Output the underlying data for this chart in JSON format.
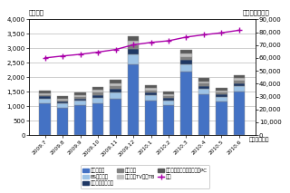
{
  "categories": [
    "2009.7",
    "2009.8",
    "2009.9",
    "2009.10",
    "2009.11",
    "2009.12",
    "2010.1",
    "2010.2",
    "2010.3",
    "2010.4",
    "2010.5",
    "2010.6"
  ],
  "chijoTV": [
    1100,
    950,
    1050,
    1100,
    1250,
    2450,
    1200,
    1050,
    2200,
    1400,
    1150,
    1500
  ],
  "BSrecorder": [
    160,
    140,
    150,
    200,
    220,
    330,
    170,
    150,
    250,
    190,
    165,
    190
  ],
  "digitalRecorder": [
    75,
    65,
    70,
    95,
    120,
    190,
    90,
    82,
    140,
    105,
    85,
    105
  ],
  "chyuner": [
    55,
    50,
    55,
    75,
    95,
    140,
    75,
    65,
    110,
    80,
    65,
    80
  ],
  "cableTV": [
    65,
    60,
    63,
    85,
    105,
    150,
    85,
    75,
    125,
    90,
    73,
    87
  ],
  "chijoTunerPC": [
    75,
    70,
    73,
    95,
    115,
    160,
    93,
    83,
    135,
    95,
    80,
    95
  ],
  "cumulative": [
    60000,
    61500,
    62800,
    64500,
    66500,
    70200,
    72000,
    73300,
    76200,
    78000,
    79500,
    81500
  ],
  "colors": {
    "chijoTV": "#4472c4",
    "BSrecorder": "#9dc3e6",
    "digitalRecorder": "#1f3864",
    "chyuner": "#808080",
    "cableTV": "#bfbfbf",
    "chijoTunerPC": "#595959",
    "cumulative": "#aa00aa"
  },
  "ylim_left": [
    0,
    4000
  ],
  "ylim_right": [
    0,
    90000
  ],
  "yticks_left": [
    0,
    500,
    1000,
    1500,
    2000,
    2500,
    3000,
    3500,
    4000
  ],
  "yticks_right": [
    0,
    10000,
    20000,
    30000,
    40000,
    50000,
    60000,
    70000,
    80000,
    90000
  ],
  "ylabel_left": "（千台）",
  "ylabel_right": "（累計・千台）",
  "unit_bottom": "（単位：円）",
  "legend_labels": [
    "薄型テレビ",
    "BSレコーダ",
    "デジタルレコーダ",
    "チューナ",
    "ケーブルTV録画TB",
    "地上デジタルチューナ内蔵PC",
    "累計"
  ],
  "bg_color": "#ffffff",
  "plot_bg": "#f0f0f0",
  "grid_color": "#aaaaaa"
}
